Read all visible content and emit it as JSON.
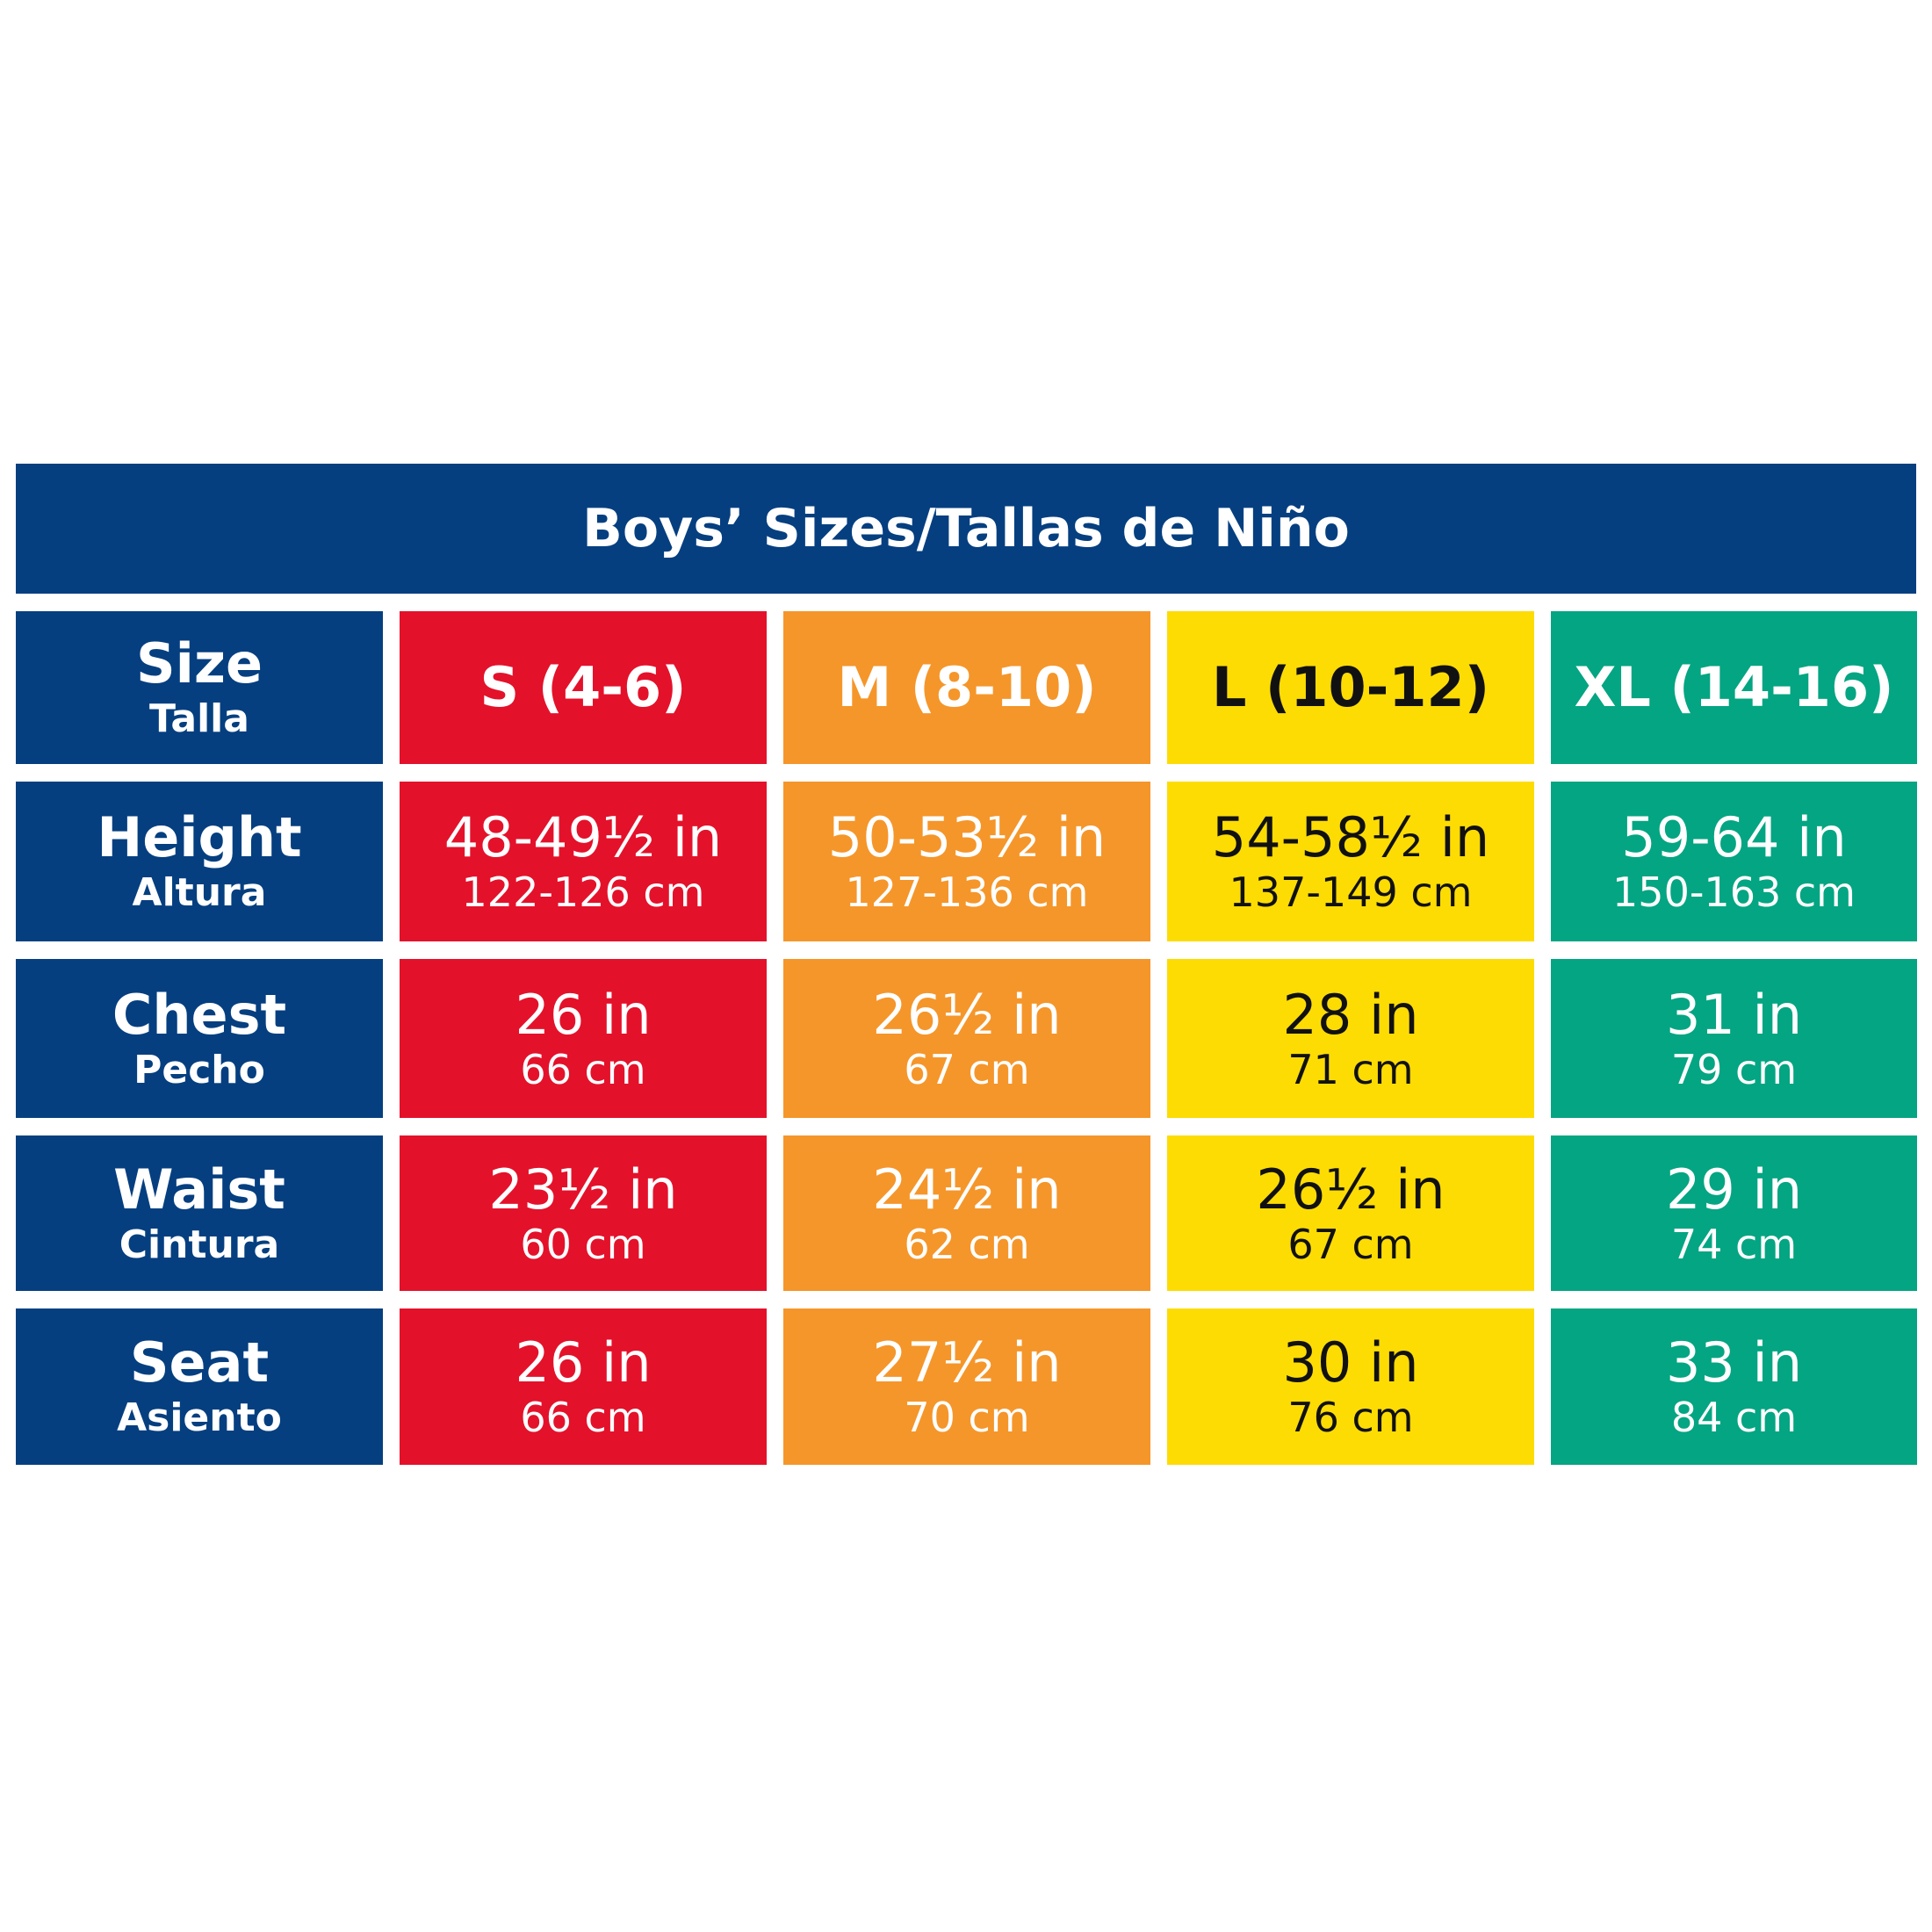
{
  "title": "Boys’ Sizes/Tallas de Niño",
  "header": {
    "label": "Size",
    "sublabel": "Talla"
  },
  "columns": [
    "S (4-6)",
    "M (8-10)",
    "L (10-12)",
    "XL (14-16)"
  ],
  "rows": [
    {
      "label": "Height",
      "sublabel": "Altura",
      "cells": [
        [
          "48-49½ in",
          "122-126 cm"
        ],
        [
          "50-53½ in",
          "127-136 cm"
        ],
        [
          "54-58½ in",
          "137-149 cm"
        ],
        [
          "59-64 in",
          "150-163 cm"
        ]
      ]
    },
    {
      "label": "Chest",
      "sublabel": "Pecho",
      "cells": [
        [
          "26 in",
          "66 cm"
        ],
        [
          "26½ in",
          "67 cm"
        ],
        [
          "28 in",
          "71 cm"
        ],
        [
          "31 in",
          "79 cm"
        ]
      ]
    },
    {
      "label": "Waist",
      "sublabel": "Cintura",
      "cells": [
        [
          "23½ in",
          "60 cm"
        ],
        [
          "24½ in",
          "62 cm"
        ],
        [
          "26½ in",
          "67 cm"
        ],
        [
          "29 in",
          "74 cm"
        ]
      ]
    },
    {
      "label": "Seat",
      "sublabel": "Asiento",
      "cells": [
        [
          "26 in",
          "66 cm"
        ],
        [
          "27½ in",
          "70 cm"
        ],
        [
          "30 in",
          "76 cm"
        ],
        [
          "33 in",
          "84 cm"
        ]
      ]
    }
  ]
}
